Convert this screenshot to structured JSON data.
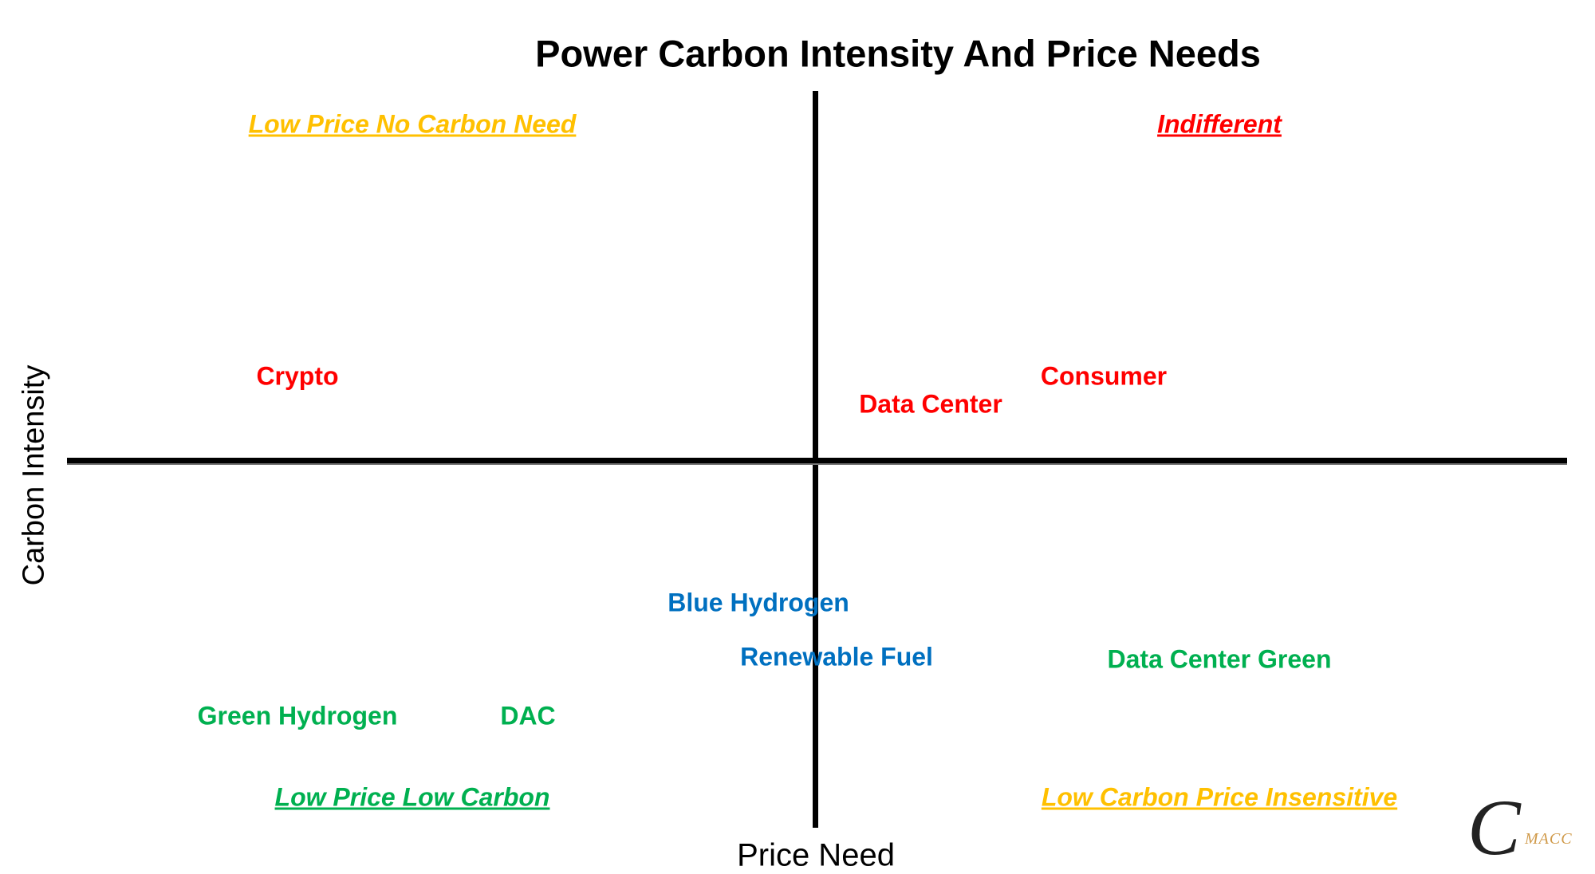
{
  "title": "Power Carbon Intensity And Price Needs",
  "axes": {
    "x_label": "Price Need",
    "y_label": "Carbon Intensity"
  },
  "quadrants": {
    "top_left": {
      "label": "Low Price No Carbon Need",
      "color": "#FFC000"
    },
    "top_right": {
      "label": "Indifferent",
      "color": "#FF0000"
    },
    "bottom_left": {
      "label": "Low Price Low Carbon",
      "color": "#00B050"
    },
    "bottom_right": {
      "label": "Low Carbon Price Insensitive",
      "color": "#FFC000"
    }
  },
  "items": [
    {
      "label": "Crypto",
      "color": "#FF0000"
    },
    {
      "label": "Data Center",
      "color": "#FF0000"
    },
    {
      "label": "Consumer",
      "color": "#FF0000"
    },
    {
      "label": "Blue Hydrogen",
      "color": "#0070C0"
    },
    {
      "label": "Renewable Fuel",
      "color": "#0070C0"
    },
    {
      "label": "Data Center Green",
      "color": "#00B050"
    },
    {
      "label": "Green Hydrogen",
      "color": "#00B050"
    },
    {
      "label": "DAC",
      "color": "#00B050"
    }
  ],
  "logo": {
    "text": "MACC",
    "letter": "C"
  }
}
